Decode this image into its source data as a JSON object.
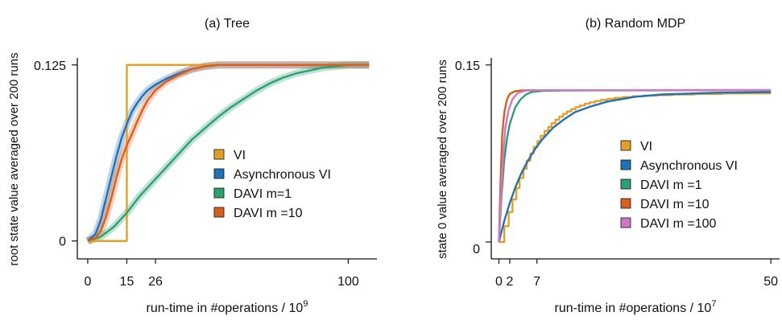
{
  "figure": {
    "panels": [
      {
        "id": "a",
        "title": "(a) Tree",
        "ylabel": "root state value averaged over 200 runs",
        "xlabel_main": "run-time in #operations / 10",
        "xlabel_sup": "9"
      },
      {
        "id": "b",
        "title": "(b) Random MDP",
        "ylabel": "state 0 value averaged over 200 runs",
        "xlabel_main": "run-time in #operations / 10",
        "xlabel_sup": "7"
      }
    ]
  },
  "chart_data": [
    {
      "type": "line",
      "title": "(a) Tree",
      "xlabel": "run-time in #operations / 10^9",
      "ylabel": "root state value averaged over 200 runs",
      "xlim": [
        -4,
        111
      ],
      "ylim": [
        -0.007,
        0.13
      ],
      "xticks": [
        0,
        15,
        26,
        100
      ],
      "yticks": [
        {
          "value": 0,
          "label": "0"
        },
        {
          "value": 0.125,
          "label": "0.125"
        }
      ],
      "grid": false,
      "legend_position": "center-right",
      "series": [
        {
          "name": "VI",
          "color": "#E69F25",
          "band": false,
          "points": [
            [
              0,
              0
            ],
            [
              15,
              0
            ],
            [
              15,
              0.125
            ],
            [
              108,
              0.125
            ]
          ]
        },
        {
          "name": "Asynchronous VI",
          "color": "#2171B5",
          "band": true,
          "points": [
            [
              0,
              0
            ],
            [
              3,
              0.005
            ],
            [
              5,
              0.015
            ],
            [
              7,
              0.03
            ],
            [
              9,
              0.045
            ],
            [
              11,
              0.06
            ],
            [
              13,
              0.073
            ],
            [
              15,
              0.083
            ],
            [
              17,
              0.092
            ],
            [
              19,
              0.098
            ],
            [
              21,
              0.103
            ],
            [
              23,
              0.107
            ],
            [
              26,
              0.111
            ],
            [
              30,
              0.115
            ],
            [
              35,
              0.119
            ],
            [
              40,
              0.122
            ],
            [
              45,
              0.124
            ],
            [
              50,
              0.125
            ],
            [
              108,
              0.125
            ]
          ]
        },
        {
          "name": "DAVI m=1",
          "color": "#2CA070",
          "band": true,
          "points": [
            [
              0,
              0
            ],
            [
              5,
              0.003
            ],
            [
              10,
              0.01
            ],
            [
              15,
              0.02
            ],
            [
              20,
              0.032
            ],
            [
              26,
              0.044
            ],
            [
              30,
              0.052
            ],
            [
              35,
              0.062
            ],
            [
              40,
              0.072
            ],
            [
              45,
              0.08
            ],
            [
              50,
              0.088
            ],
            [
              55,
              0.095
            ],
            [
              60,
              0.101
            ],
            [
              65,
              0.107
            ],
            [
              70,
              0.112
            ],
            [
              75,
              0.116
            ],
            [
              80,
              0.119
            ],
            [
              85,
              0.121
            ],
            [
              90,
              0.123
            ],
            [
              95,
              0.124
            ],
            [
              100,
              0.125
            ],
            [
              108,
              0.125
            ]
          ]
        },
        {
          "name": "DAVI m =10",
          "color": "#D95F1E",
          "band": true,
          "points": [
            [
              0,
              0
            ],
            [
              3,
              0.002
            ],
            [
              5,
              0.007
            ],
            [
              7,
              0.017
            ],
            [
              9,
              0.03
            ],
            [
              11,
              0.045
            ],
            [
              13,
              0.058
            ],
            [
              15,
              0.068
            ],
            [
              17,
              0.076
            ],
            [
              19,
              0.085
            ],
            [
              21,
              0.093
            ],
            [
              23,
              0.1
            ],
            [
              26,
              0.107
            ],
            [
              30,
              0.113
            ],
            [
              35,
              0.118
            ],
            [
              40,
              0.122
            ],
            [
              45,
              0.124
            ],
            [
              50,
              0.125
            ],
            [
              108,
              0.125
            ]
          ]
        }
      ]
    },
    {
      "type": "line",
      "title": "(b) Random MDP",
      "xlabel": "run-time in #operations / 10^7",
      "ylabel": "state 0 value averaged over 200 runs",
      "xlim": [
        -1.4,
        51.6
      ],
      "ylim": [
        -0.0075,
        0.156
      ],
      "xticks": [
        0,
        2,
        7,
        50
      ],
      "yticks": [
        {
          "value": 0,
          "label": "0"
        },
        {
          "value": 0.15,
          "label": "0.15"
        }
      ],
      "grid": false,
      "legend_position": "lower-right",
      "series": [
        {
          "name": "VI",
          "color": "#E69F25",
          "band": false,
          "points": [
            [
              0,
              0
            ],
            [
              0.6,
              0
            ],
            [
              1,
              0
            ],
            [
              1,
              0.0134
            ],
            [
              1.8,
              0.0134
            ],
            [
              1.8,
              0.0254
            ],
            [
              2.5,
              0.0254
            ],
            [
              2.5,
              0.0361
            ],
            [
              3.2,
              0.0361
            ],
            [
              3.2,
              0.0457
            ],
            [
              3.8,
              0.0457
            ],
            [
              3.8,
              0.0543
            ],
            [
              4.5,
              0.0543
            ],
            [
              4.5,
              0.062
            ],
            [
              5.1,
              0.062
            ],
            [
              5.1,
              0.0689
            ],
            [
              5.8,
              0.0689
            ],
            [
              5.8,
              0.075
            ],
            [
              6.4,
              0.075
            ],
            [
              6.4,
              0.0806
            ],
            [
              7.1,
              0.0806
            ],
            [
              7.1,
              0.0855
            ],
            [
              7.7,
              0.0855
            ],
            [
              7.7,
              0.09
            ],
            [
              8.4,
              0.09
            ],
            [
              8.4,
              0.094
            ],
            [
              9.1,
              0.094
            ],
            [
              9.1,
              0.0975
            ],
            [
              9.7,
              0.0975
            ],
            [
              9.7,
              0.1007
            ],
            [
              10.4,
              0.1007
            ],
            [
              10.4,
              0.1036
            ],
            [
              11.1,
              0.1036
            ],
            [
              11.1,
              0.1062
            ],
            [
              11.8,
              0.1062
            ],
            [
              11.8,
              0.1085
            ],
            [
              12.5,
              0.1085
            ],
            [
              12.5,
              0.1106
            ],
            [
              13.3,
              0.1106
            ],
            [
              13.3,
              0.1125
            ],
            [
              14.1,
              0.1125
            ],
            [
              14.1,
              0.1142
            ],
            [
              14.9,
              0.1142
            ],
            [
              14.9,
              0.1157
            ],
            [
              15.8,
              0.1157
            ],
            [
              15.8,
              0.1171
            ],
            [
              16.7,
              0.1171
            ],
            [
              16.7,
              0.1183
            ],
            [
              17.7,
              0.1183
            ],
            [
              17.7,
              0.1194
            ],
            [
              18.8,
              0.1194
            ],
            [
              18.8,
              0.1204
            ],
            [
              20,
              0.1204
            ],
            [
              20,
              0.1213
            ],
            [
              21.3,
              0.1213
            ],
            [
              21.3,
              0.1221
            ],
            [
              22.8,
              0.1221
            ],
            [
              22.8,
              0.1228
            ],
            [
              24.5,
              0.1228
            ],
            [
              24.5,
              0.1235
            ],
            [
              26.5,
              0.1235
            ],
            [
              26.5,
              0.124
            ],
            [
              29,
              0.124
            ],
            [
              29,
              0.1245
            ],
            [
              32,
              0.1245
            ],
            [
              32,
              0.125
            ],
            [
              36,
              0.125
            ],
            [
              36,
              0.1254
            ],
            [
              41,
              0.1254
            ],
            [
              41,
              0.1258
            ],
            [
              50,
              0.126
            ]
          ]
        },
        {
          "name": "Asynchronous VI",
          "color": "#2171B5",
          "band": false,
          "points": [
            [
              0,
              0
            ],
            [
              1,
              0.018
            ],
            [
              2,
              0.033
            ],
            [
              3,
              0.046
            ],
            [
              4,
              0.057
            ],
            [
              5,
              0.066
            ],
            [
              6,
              0.074
            ],
            [
              7,
              0.081
            ],
            [
              8,
              0.087
            ],
            [
              10,
              0.097
            ],
            [
              12,
              0.104
            ],
            [
              14,
              0.11
            ],
            [
              17,
              0.115
            ],
            [
              20,
              0.119
            ],
            [
              25,
              0.123
            ],
            [
              30,
              0.125
            ],
            [
              40,
              0.1265
            ],
            [
              50,
              0.127
            ]
          ]
        },
        {
          "name": "DAVI m =1",
          "color": "#2CA070",
          "band": false,
          "points": [
            [
              0,
              0
            ],
            [
              0.5,
              0.04
            ],
            [
              1,
              0.07
            ],
            [
              1.5,
              0.088
            ],
            [
              2,
              0.1
            ],
            [
              3,
              0.114
            ],
            [
              4,
              0.121
            ],
            [
              5,
              0.125
            ],
            [
              6,
              0.127
            ],
            [
              8,
              0.128
            ],
            [
              12,
              0.1284
            ],
            [
              50,
              0.1286
            ]
          ]
        },
        {
          "name": "DAVI m =10",
          "color": "#D95F1E",
          "band": false,
          "points": [
            [
              0,
              0
            ],
            [
              0.3,
              0.05
            ],
            [
              0.6,
              0.09
            ],
            [
              1,
              0.11
            ],
            [
              1.5,
              0.121
            ],
            [
              2,
              0.1255
            ],
            [
              3,
              0.1278
            ],
            [
              4,
              0.1284
            ],
            [
              6,
              0.1286
            ],
            [
              50,
              0.1287
            ]
          ]
        },
        {
          "name": "DAVI m =100",
          "color": "#CC79C8",
          "band": false,
          "points": [
            [
              0,
              0
            ],
            [
              0.4,
              0.04
            ],
            [
              0.8,
              0.075
            ],
            [
              1.2,
              0.097
            ],
            [
              1.8,
              0.112
            ],
            [
              2.5,
              0.121
            ],
            [
              3.5,
              0.1265
            ],
            [
              5,
              0.1282
            ],
            [
              7,
              0.1286
            ],
            [
              50,
              0.1287
            ]
          ]
        }
      ]
    }
  ]
}
